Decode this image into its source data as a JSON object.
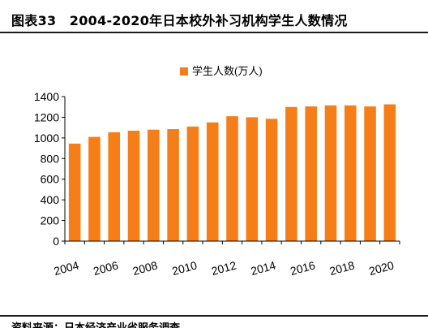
{
  "header": {
    "title": "图表33　2004-2020年日本校外补习机构学生人数情况"
  },
  "footer": {
    "source": "资料来源：日本经济产业省服务调查"
  },
  "colors": {
    "bar": "#F57E19",
    "axis": "#000000",
    "grid": "#d9d9d9"
  },
  "chart_data": {
    "type": "bar",
    "legend": {
      "label": "学生人数(万人)",
      "placement": "top"
    },
    "categories": [
      "2004",
      "2005",
      "2006",
      "2007",
      "2008",
      "2009",
      "2010",
      "2011",
      "2012",
      "2013",
      "2014",
      "2015",
      "2016",
      "2017",
      "2018",
      "2019",
      "2020"
    ],
    "xticks": [
      "2004",
      "2006",
      "2008",
      "2010",
      "2012",
      "2014",
      "2016",
      "2018",
      "2020"
    ],
    "series": [
      {
        "name": "学生人数(万人)",
        "values": [
          945,
          1010,
          1055,
          1070,
          1080,
          1085,
          1110,
          1150,
          1210,
          1200,
          1185,
          1300,
          1305,
          1315,
          1315,
          1305,
          1325
        ]
      }
    ],
    "ylim": [
      0,
      1400
    ],
    "yticks": [
      0,
      200,
      400,
      600,
      800,
      1000,
      1200,
      1400
    ],
    "grid": false
  }
}
